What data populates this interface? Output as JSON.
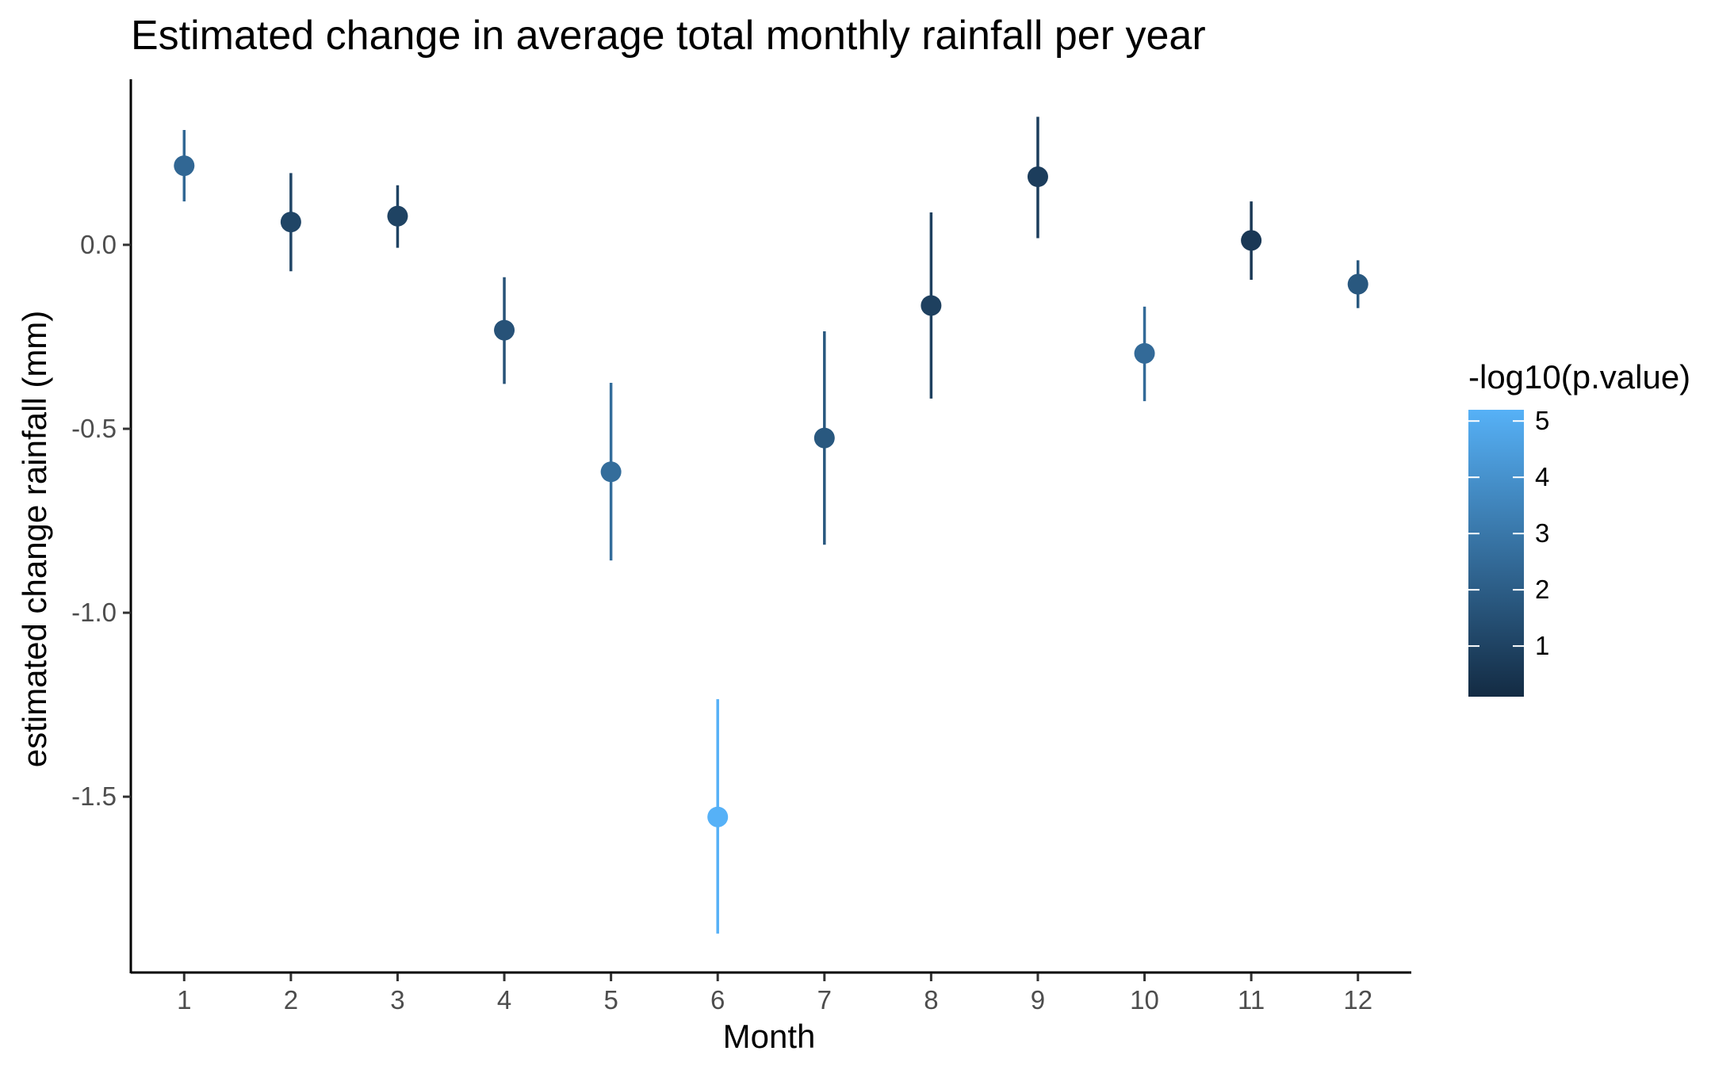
{
  "chart_data": {
    "type": "scatter",
    "title": "Estimated change in average total monthly rainfall per year",
    "xlabel": "Month",
    "ylabel": "estimated change rainfall (mm)",
    "x": [
      1,
      2,
      3,
      4,
      5,
      6,
      7,
      8,
      9,
      10,
      11,
      12
    ],
    "y": [
      0.215,
      0.062,
      0.078,
      -0.232,
      -0.617,
      -1.555,
      -0.525,
      -0.165,
      0.185,
      -0.295,
      0.012,
      -0.107
    ],
    "ymin": [
      0.118,
      -0.072,
      -0.008,
      -0.378,
      -0.858,
      -1.872,
      -0.815,
      -0.418,
      0.018,
      -0.425,
      -0.095,
      -0.172
    ],
    "ymax": [
      0.312,
      0.195,
      0.162,
      -0.088,
      -0.375,
      -1.235,
      -0.235,
      0.088,
      0.348,
      -0.168,
      0.118,
      -0.042
    ],
    "color_values": [
      2.4,
      1.1,
      1.0,
      1.6,
      2.6,
      5.2,
      1.8,
      0.9,
      0.8,
      2.5,
      0.6,
      1.8
    ],
    "x_ticks": [
      "1",
      "2",
      "3",
      "4",
      "5",
      "6",
      "7",
      "8",
      "9",
      "10",
      "11",
      "12"
    ],
    "y_ticks": [
      "0.0",
      "-0.5",
      "-1.0",
      "-1.5"
    ],
    "y_tick_values": [
      0.0,
      -0.5,
      -1.0,
      -1.5
    ],
    "xlim": [
      0.5,
      12.5
    ],
    "ylim": [
      -1.98,
      0.45
    ],
    "grid": false,
    "legend": {
      "title": "-log10(p.value)",
      "position": "right",
      "type": "colorbar",
      "range": [
        0.1,
        5.2
      ],
      "tick_values": [
        1,
        2,
        3,
        4,
        5
      ],
      "tick_labels": [
        "1",
        "2",
        "3",
        "4",
        "5"
      ],
      "low_color": "#132B43",
      "high_color": "#56B1F7"
    }
  }
}
